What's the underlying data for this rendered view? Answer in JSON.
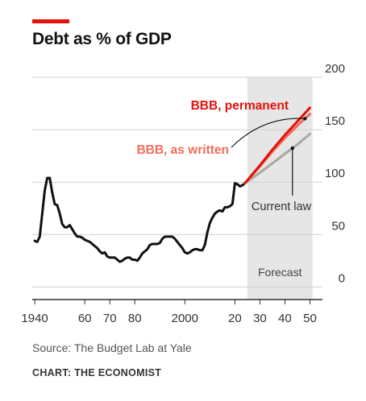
{
  "header": {
    "title": "Debt as % of GDP"
  },
  "footer": {
    "source": "Source: The Budget Lab at Yale",
    "credit": "CHART: THE ECONOMIST"
  },
  "colors": {
    "accent": "#e3120b",
    "permanent": "#e3120b",
    "as_written": "#f26d5b",
    "current_law": "#a8a8a0",
    "history": "#111111",
    "forecast_band": "#e6e6e6"
  },
  "chart_data": {
    "type": "line",
    "title": "Debt as % of GDP",
    "xlabel": "",
    "ylabel": "",
    "xlim": [
      1939,
      2055
    ],
    "ylim": [
      -12,
      200
    ],
    "y_ticks": [
      {
        "v": 0,
        "label": "0"
      },
      {
        "v": 50,
        "label": "50"
      },
      {
        "v": 100,
        "label": "100"
      },
      {
        "v": 150,
        "label": "150"
      },
      {
        "v": 200,
        "label": "200"
      }
    ],
    "x_ticks": [
      {
        "v": 1940,
        "label": "1940"
      },
      {
        "v": 1960,
        "label": "60"
      },
      {
        "v": 1970,
        "label": "70"
      },
      {
        "v": 1980,
        "label": "80"
      },
      {
        "v": 2000,
        "label": "2000"
      },
      {
        "v": 2020,
        "label": "20"
      },
      {
        "v": 2030,
        "label": "30"
      },
      {
        "v": 2040,
        "label": "40"
      },
      {
        "v": 2050,
        "label": "50"
      }
    ],
    "grid": true,
    "forecast": {
      "start": 2025,
      "end": 2051,
      "label": "Forecast"
    },
    "series": [
      {
        "name": "",
        "key": "history",
        "color": "#111111",
        "x": [
          1940,
          1941,
          1942,
          1943,
          1944,
          1945,
          1946,
          1947,
          1948,
          1949,
          1950,
          1951,
          1952,
          1953,
          1954,
          1955,
          1956,
          1957,
          1958,
          1959,
          1960,
          1961,
          1962,
          1963,
          1964,
          1965,
          1966,
          1967,
          1968,
          1969,
          1970,
          1971,
          1972,
          1973,
          1974,
          1975,
          1976,
          1977,
          1978,
          1979,
          1980,
          1981,
          1982,
          1983,
          1984,
          1985,
          1986,
          1987,
          1988,
          1989,
          1990,
          1991,
          1992,
          1993,
          1994,
          1995,
          1996,
          1997,
          1998,
          1999,
          2000,
          2001,
          2002,
          2003,
          2004,
          2005,
          2006,
          2007,
          2008,
          2009,
          2010,
          2011,
          2012,
          2013,
          2014,
          2015,
          2016,
          2017,
          2018,
          2019,
          2020,
          2021,
          2022,
          2023,
          2024
        ],
        "y": [
          44,
          43,
          48,
          70,
          92,
          104,
          104,
          90,
          79,
          78,
          70,
          60,
          57,
          57,
          59,
          55,
          51,
          48,
          48,
          47,
          45,
          44,
          43,
          41,
          39,
          37,
          34,
          32,
          33,
          29,
          28,
          28,
          28,
          26,
          24,
          25,
          27,
          28,
          28,
          26,
          26,
          25,
          28,
          32,
          34,
          36,
          40,
          41,
          41,
          41,
          42,
          46,
          48,
          48,
          48,
          48,
          46,
          43,
          40,
          37,
          33,
          32,
          33,
          35,
          36,
          36,
          35,
          35,
          40,
          52,
          61,
          66,
          70,
          72,
          73,
          72,
          76,
          76,
          77,
          79,
          99,
          98,
          96,
          97,
          99
        ]
      },
      {
        "name": "Current law",
        "key": "current_law",
        "color": "#a8a8a0",
        "x": [
          2024,
          2030,
          2035,
          2040,
          2045,
          2050
        ],
        "y": [
          99,
          109,
          118,
          127,
          136,
          146
        ]
      },
      {
        "name": "BBB, as written",
        "key": "as_written",
        "color": "#f26d5b",
        "x": [
          2024,
          2030,
          2035,
          2040,
          2045,
          2050
        ],
        "y": [
          99,
          115,
          129,
          142,
          154,
          165
        ]
      },
      {
        "name": "BBB, permanent",
        "key": "permanent",
        "color": "#e3120b",
        "x": [
          2024,
          2030,
          2035,
          2040,
          2045,
          2050
        ],
        "y": [
          99,
          116,
          131,
          145,
          158,
          171
        ]
      }
    ],
    "annotations": [
      {
        "key": "permanent",
        "text": "BBB, permanent"
      },
      {
        "key": "as_written",
        "text": "BBB, as written"
      },
      {
        "key": "current_law",
        "text": "Current law"
      }
    ]
  }
}
